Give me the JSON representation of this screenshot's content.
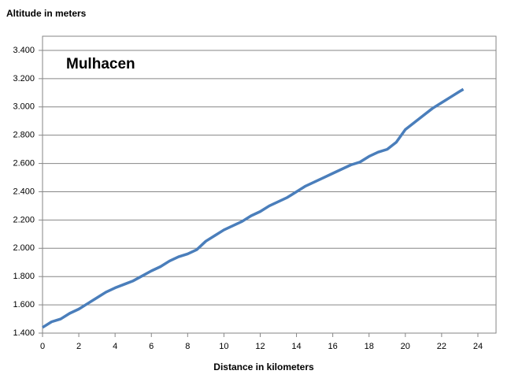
{
  "chart_data": {
    "type": "line",
    "y_label": "Altitude in meters",
    "x_label": "Distance in kilometers",
    "annotation": "Mulhacen",
    "annotation_color": "#8b0a1a",
    "xlim": [
      0,
      25
    ],
    "xticks": [
      0,
      2,
      4,
      6,
      8,
      10,
      12,
      14,
      16,
      18,
      20,
      22,
      24
    ],
    "ylim": [
      1400,
      3500
    ],
    "yticks": [
      {
        "value": 1400,
        "label": "1.400"
      },
      {
        "value": 1600,
        "label": "1.600"
      },
      {
        "value": 1800,
        "label": "1.800"
      },
      {
        "value": 2000,
        "label": "2.000"
      },
      {
        "value": 2200,
        "label": "2.200"
      },
      {
        "value": 2400,
        "label": "2.400"
      },
      {
        "value": 2600,
        "label": "2.600"
      },
      {
        "value": 2800,
        "label": "2.800"
      },
      {
        "value": 3000,
        "label": "3.000"
      },
      {
        "value": 3200,
        "label": "3.200"
      },
      {
        "value": 3400,
        "label": "3.400"
      }
    ],
    "grid": true,
    "color": "#4a7ebb",
    "x": [
      0,
      0.5,
      1,
      1.5,
      2,
      2.5,
      3,
      3.5,
      4,
      4.5,
      5,
      5.5,
      6,
      6.5,
      7,
      7.5,
      8,
      8.5,
      9,
      9.5,
      10,
      10.5,
      11,
      11.5,
      12,
      12.5,
      13,
      13.5,
      14,
      14.5,
      15,
      15.5,
      16,
      16.5,
      17,
      17.5,
      18,
      18.5,
      19,
      19.5,
      20,
      20.5,
      21,
      21.5,
      22,
      22.5,
      23,
      23.2
    ],
    "values": [
      1440,
      1480,
      1500,
      1540,
      1570,
      1610,
      1650,
      1690,
      1720,
      1745,
      1770,
      1805,
      1840,
      1870,
      1910,
      1940,
      1960,
      1990,
      2050,
      2090,
      2130,
      2160,
      2190,
      2230,
      2260,
      2300,
      2330,
      2360,
      2400,
      2440,
      2470,
      2500,
      2530,
      2560,
      2590,
      2610,
      2650,
      2680,
      2700,
      2750,
      2840,
      2890,
      2940,
      2990,
      3030,
      3070,
      3110,
      3125
    ]
  }
}
